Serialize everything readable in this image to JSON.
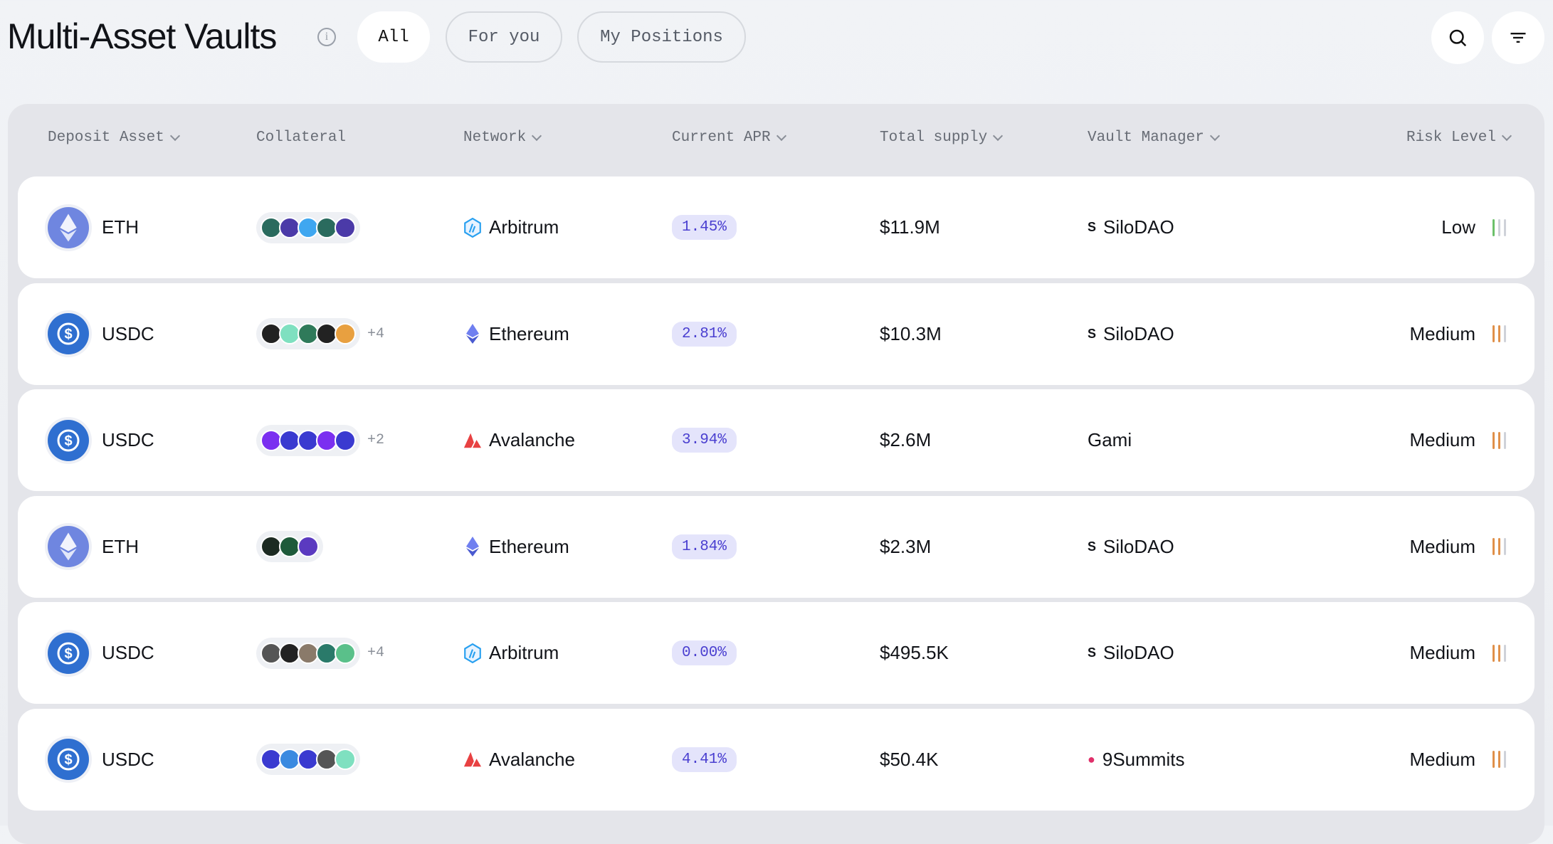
{
  "header": {
    "title": "Multi-Asset Vaults",
    "info_icon": "info-icon",
    "tabs": [
      {
        "label": "All",
        "active": true
      },
      {
        "label": "For you",
        "active": false
      },
      {
        "label": "My Positions",
        "active": false
      }
    ],
    "search_icon": "search-icon",
    "filter_icon": "filter-icon"
  },
  "columns": [
    "Deposit Asset",
    "Collateral",
    "Network",
    "Current APR",
    "Total supply",
    "Vault Manager",
    "Risk Level"
  ],
  "colors": {
    "low": "#6cc06a",
    "medium": "#e0904a",
    "apr_text": "#4a3fd0",
    "eth": "#6f86e0",
    "usdc": "#2f6fd0"
  },
  "rows": [
    {
      "asset": "ETH",
      "collateral_icons": [
        "#2a6b5e",
        "#4b3aa8",
        "#3fa7f0",
        "#2a6b5e",
        "#4b3aa8"
      ],
      "more": "",
      "network": "Arbitrum",
      "apr": "1.45%",
      "supply": "$11.9M",
      "manager": "SiloDAO",
      "manager_icon": "silo-icon",
      "risk": "Low",
      "risk_level": 1
    },
    {
      "asset": "USDC",
      "collateral_icons": [
        "#222",
        "#7fe0c0",
        "#2f7a5a",
        "#222",
        "#e8a040"
      ],
      "more": "+4",
      "network": "Ethereum",
      "apr": "2.81%",
      "supply": "$10.3M",
      "manager": "SiloDAO",
      "manager_icon": "silo-icon",
      "risk": "Medium",
      "risk_level": 2
    },
    {
      "asset": "USDC",
      "collateral_icons": [
        "#7b2ff0",
        "#3a3ad0",
        "#3a3ad0",
        "#7b2ff0",
        "#3a3ad0"
      ],
      "more": "+2",
      "network": "Avalanche",
      "apr": "3.94%",
      "supply": "$2.6M",
      "manager": "Gami",
      "manager_icon": "",
      "risk": "Medium",
      "risk_level": 2
    },
    {
      "asset": "ETH",
      "collateral_icons": [
        "#1c2a22",
        "#1e5a3a",
        "#5b3ac0"
      ],
      "more": "",
      "network": "Ethereum",
      "apr": "1.84%",
      "supply": "$2.3M",
      "manager": "SiloDAO",
      "manager_icon": "silo-icon",
      "risk": "Medium",
      "risk_level": 2
    },
    {
      "asset": "USDC",
      "collateral_icons": [
        "#555",
        "#222",
        "#8a7a6a",
        "#2a7a6a",
        "#5ac08a"
      ],
      "more": "+4",
      "network": "Arbitrum",
      "apr": "0.00%",
      "supply": "$495.5K",
      "manager": "SiloDAO",
      "manager_icon": "silo-icon",
      "risk": "Medium",
      "risk_level": 2
    },
    {
      "asset": "USDC",
      "collateral_icons": [
        "#3a3ad0",
        "#3a8ae0",
        "#3a3ad0",
        "#555",
        "#7fe0c0"
      ],
      "more": "",
      "network": "Avalanche",
      "apr": "4.41%",
      "supply": "$50.4K",
      "manager": "9Summits",
      "manager_icon": "9summits-icon",
      "risk": "Medium",
      "risk_level": 2
    }
  ]
}
